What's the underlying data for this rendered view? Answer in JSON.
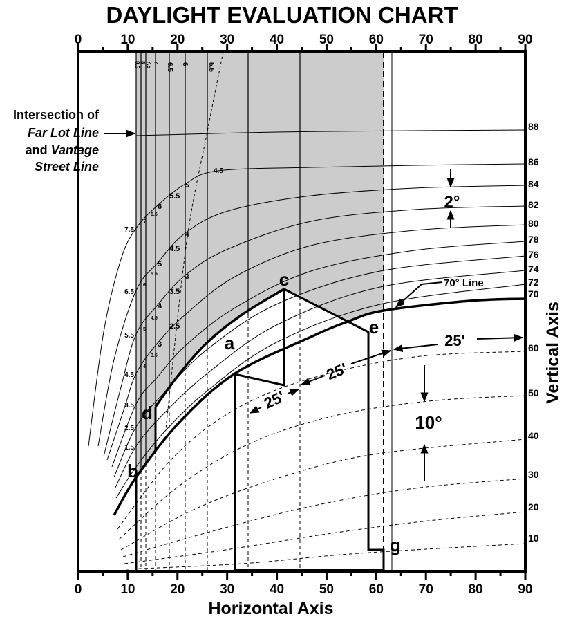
{
  "chart_data": {
    "type": "line",
    "title": "DAYLIGHT EVALUATION CHART",
    "xlabel": "Horizontal Axis",
    "ylabel": "Vertical Axis",
    "xlim": [
      0,
      90
    ],
    "x_ticks": [
      "0",
      "10",
      "20",
      "30",
      "40",
      "50",
      "60",
      "70",
      "80",
      "90"
    ],
    "right_axis_labels": [
      "88",
      "86",
      "84",
      "82",
      "80",
      "78",
      "76",
      "74",
      "72",
      "70",
      "60",
      "50",
      "40",
      "30",
      "20",
      "10"
    ],
    "grid": false,
    "shaded_color": "#cccccc",
    "line_color": "#000000",
    "curve_left_labels": [
      "7.5",
      "6.5",
      "5.5",
      "4.5",
      "3.5",
      "2.5",
      "1.5"
    ],
    "curve_inner_labels": [
      "6",
      "5",
      "4",
      "3",
      "5.5",
      "4.5",
      "3.5",
      "2.5",
      "5",
      "4",
      "3",
      "4.5",
      "7",
      "6.5",
      "6",
      "5.5",
      "5",
      "4.5",
      "4",
      "3.5"
    ],
    "top_vertical_labels": [
      "8.5",
      "8",
      "7.5",
      "7",
      "6.5",
      "6",
      "5.5"
    ],
    "point_labels": [
      "a",
      "b",
      "c",
      "d",
      "e",
      "g"
    ],
    "annotations": {
      "intersection_line1": "Intersection of",
      "intersection_line2": "Far Lot Line",
      "intersection_line3_a": "and ",
      "intersection_line3_b": "Vantage",
      "intersection_line4": "Street Line",
      "two_degree": "2°",
      "ten_degree": "10°",
      "seventy_line": "70° Line",
      "dist_right": "25'",
      "dist_mid": "25'",
      "dist_left": "25'"
    }
  }
}
